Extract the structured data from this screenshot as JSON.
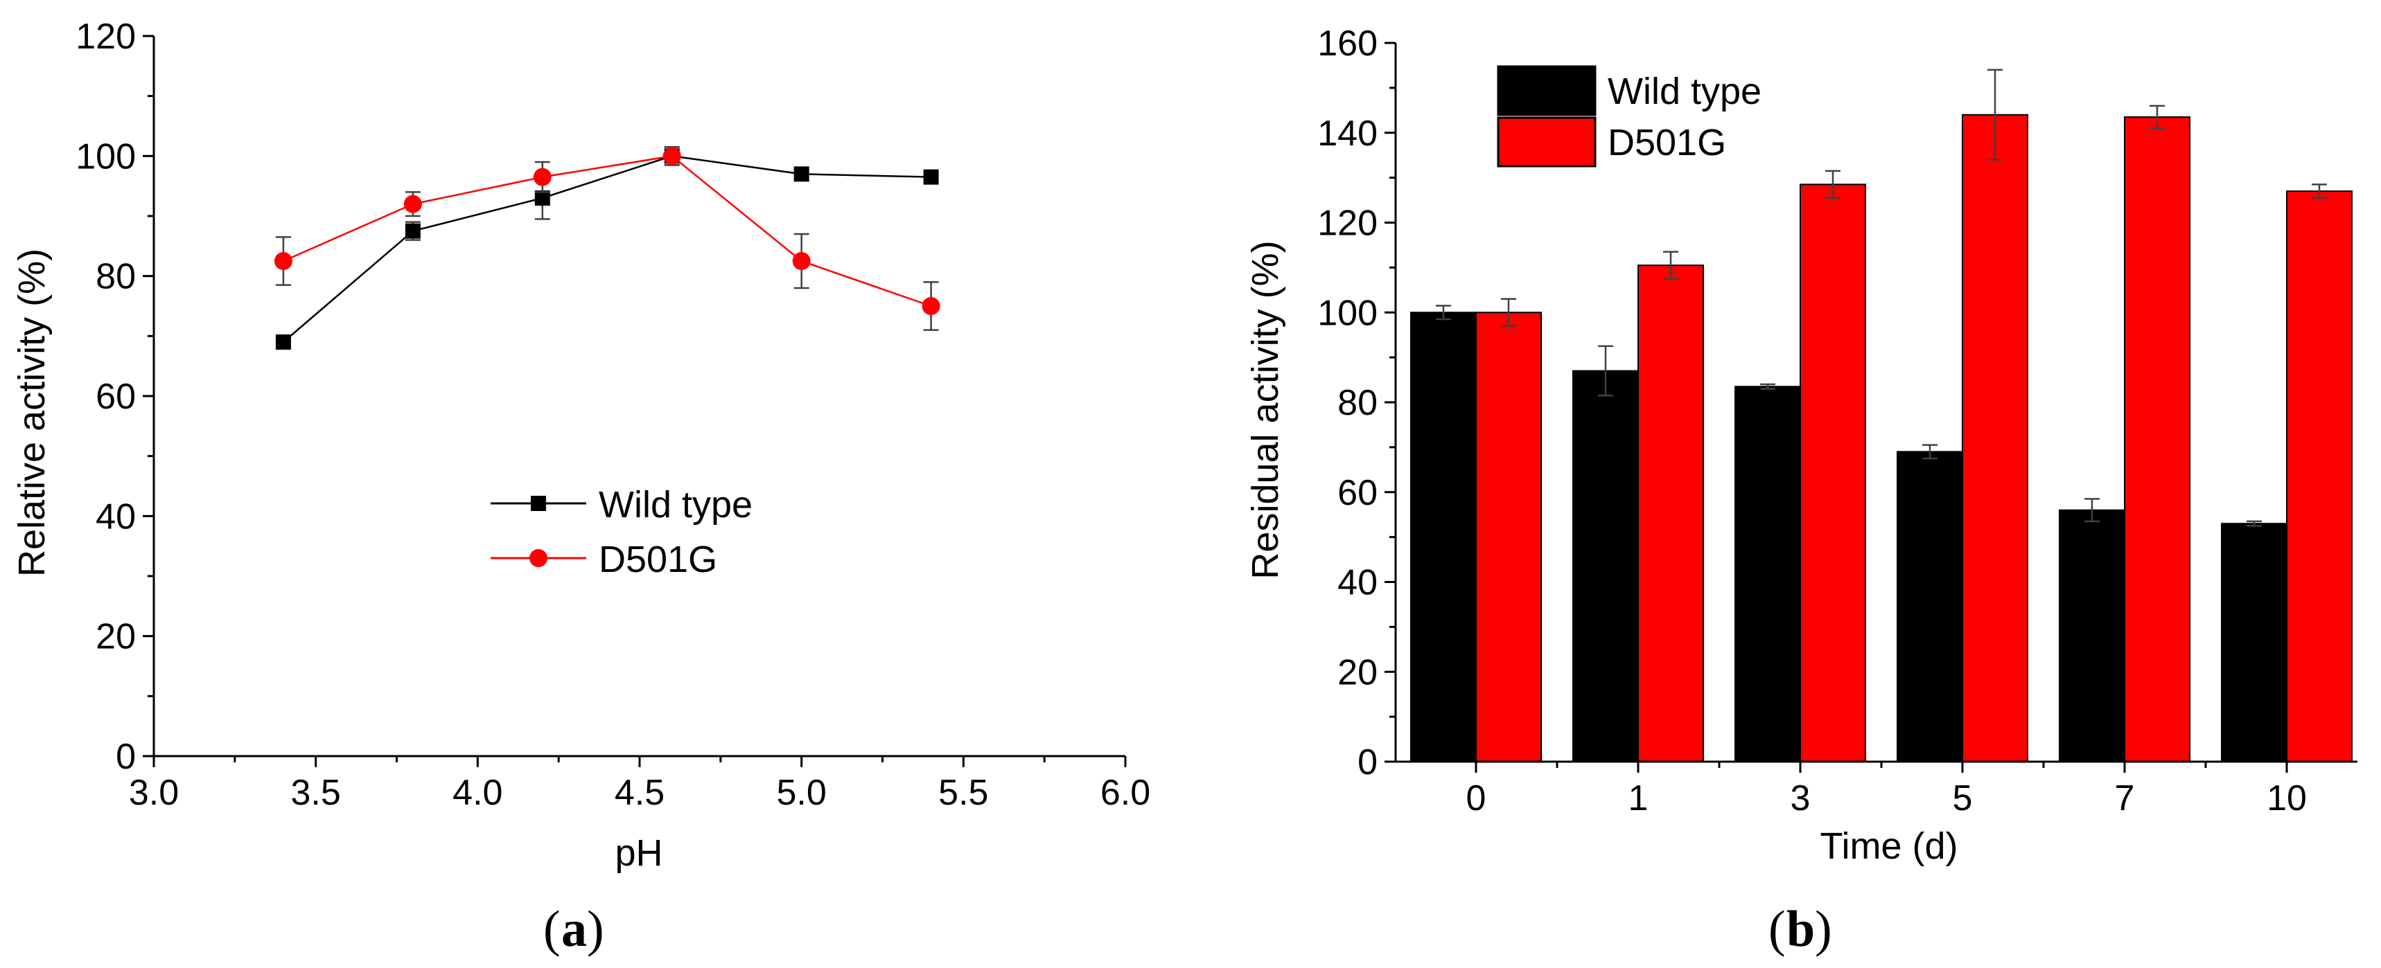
{
  "chart_data": [
    {
      "type": "line",
      "panel_label": "a",
      "title": "",
      "xlabel": "pH",
      "ylabel": "Relative activity (%)",
      "xlim": [
        3.0,
        6.0
      ],
      "ylim": [
        0,
        120
      ],
      "xticks": [
        "3.0",
        "3.5",
        "4.0",
        "4.5",
        "5.0",
        "5.5",
        "6.0"
      ],
      "yticks": [
        "0",
        "20",
        "40",
        "60",
        "80",
        "100",
        "120"
      ],
      "grid": false,
      "legend_position": "center",
      "series": [
        {
          "name": "Wild type",
          "color": "#000000",
          "marker": "square",
          "x": [
            3.4,
            3.8,
            4.2,
            4.6,
            5.0,
            5.4
          ],
          "values": [
            69,
            87.5,
            93,
            100,
            97,
            96.5
          ],
          "errors": [
            0,
            1.5,
            3.5,
            1.5,
            0,
            0
          ]
        },
        {
          "name": "D501G",
          "color": "#ff0000",
          "marker": "circle",
          "x": [
            3.4,
            3.8,
            4.2,
            4.6,
            5.0,
            5.4
          ],
          "values": [
            82.5,
            92,
            96.5,
            100,
            82.5,
            75
          ],
          "errors": [
            4,
            2,
            2.5,
            1.5,
            4.5,
            4
          ]
        }
      ]
    },
    {
      "type": "bar",
      "panel_label": "b",
      "title": "",
      "xlabel": "Time (d)",
      "ylabel": "Residual activity (%)",
      "categories": [
        "0",
        "1",
        "3",
        "5",
        "7",
        "10"
      ],
      "ylim": [
        0,
        160
      ],
      "yticks": [
        "0",
        "20",
        "40",
        "60",
        "80",
        "100",
        "120",
        "140",
        "160"
      ],
      "grid": false,
      "legend_position": "top-left",
      "series": [
        {
          "name": "Wild type",
          "color": "#000000",
          "values": [
            100,
            87,
            83.5,
            69,
            56,
            53
          ],
          "errors": [
            1.5,
            5.5,
            0.5,
            1.5,
            2.5,
            0.5
          ]
        },
        {
          "name": "D501G",
          "color": "#ff0000",
          "values": [
            100,
            110.5,
            128.5,
            144,
            143.5,
            127
          ],
          "errors": [
            3,
            3,
            3,
            10,
            2.5,
            1.5
          ]
        }
      ]
    }
  ]
}
